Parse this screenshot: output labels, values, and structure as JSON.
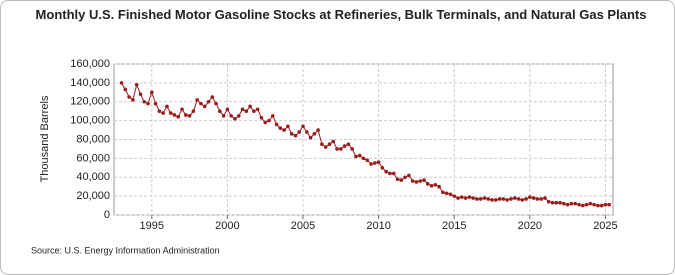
{
  "chart_data": {
    "type": "line",
    "title": "Monthly U.S. Finished Motor Gasoline Stocks at Refineries, Bulk Terminals, and Natural Gas Plants",
    "y_label": "Thousand Barrels",
    "source": "Source: U.S. Energy Information Administration",
    "xlim": [
      1992.5,
      2025.5
    ],
    "xticks": [
      1995,
      2000,
      2005,
      2010,
      2015,
      2020,
      2025
    ],
    "ylim": [
      0,
      160000
    ],
    "yticks": [
      0,
      {
        "value": 20000,
        "label": "20,000"
      },
      {
        "value": 40000,
        "label": "40,000"
      },
      {
        "value": 60000,
        "label": "60,000"
      },
      {
        "value": 80000,
        "label": "80,000"
      },
      {
        "value": 100000,
        "label": "100,000"
      },
      {
        "value": 120000,
        "label": "120,000"
      },
      {
        "value": 140000,
        "label": "140,000"
      },
      {
        "value": 160000,
        "label": "160,000"
      }
    ],
    "grid": true,
    "series": [
      {
        "color": "#9b1b1b",
        "x": [
          1993,
          1993.25,
          1993.5,
          1993.75,
          1994,
          1994.25,
          1994.5,
          1994.75,
          1995,
          1995.25,
          1995.5,
          1995.75,
          1996,
          1996.25,
          1996.5,
          1996.75,
          1997,
          1997.25,
          1997.5,
          1997.75,
          1998,
          1998.25,
          1998.5,
          1998.75,
          1999,
          1999.25,
          1999.5,
          1999.75,
          2000,
          2000.25,
          2000.5,
          2000.75,
          2001,
          2001.25,
          2001.5,
          2001.75,
          2002,
          2002.25,
          2002.5,
          2002.75,
          2003,
          2003.25,
          2003.5,
          2003.75,
          2004,
          2004.25,
          2004.5,
          2004.75,
          2005,
          2005.25,
          2005.5,
          2005.75,
          2006,
          2006.25,
          2006.5,
          2006.75,
          2007,
          2007.25,
          2007.5,
          2007.75,
          2008,
          2008.25,
          2008.5,
          2008.75,
          2009,
          2009.25,
          2009.5,
          2009.75,
          2010,
          2010.25,
          2010.5,
          2010.75,
          2011,
          2011.25,
          2011.5,
          2011.75,
          2012,
          2012.25,
          2012.5,
          2012.75,
          2013,
          2013.25,
          2013.5,
          2013.75,
          2014,
          2014.25,
          2014.5,
          2014.75,
          2015,
          2015.25,
          2015.5,
          2015.75,
          2016,
          2016.25,
          2016.5,
          2016.75,
          2017,
          2017.25,
          2017.5,
          2017.75,
          2018,
          2018.25,
          2018.5,
          2018.75,
          2019,
          2019.25,
          2019.5,
          2019.75,
          2020,
          2020.25,
          2020.5,
          2020.75,
          2021,
          2021.25,
          2021.5,
          2021.75,
          2022,
          2022.25,
          2022.5,
          2022.75,
          2023,
          2023.25,
          2023.5,
          2023.75,
          2024,
          2024.25,
          2024.5,
          2024.75,
          2025,
          2025.25
        ],
        "values": [
          140000,
          133000,
          125000,
          122000,
          138000,
          128000,
          120000,
          118000,
          130000,
          118000,
          110000,
          108000,
          115000,
          108000,
          106000,
          104000,
          112000,
          106000,
          105000,
          110000,
          122000,
          118000,
          115000,
          120000,
          125000,
          118000,
          110000,
          105000,
          112000,
          105000,
          102000,
          105000,
          112000,
          110000,
          115000,
          110000,
          112000,
          103000,
          98000,
          100000,
          105000,
          96000,
          92000,
          90000,
          94000,
          86000,
          84000,
          88000,
          94000,
          88000,
          82000,
          86000,
          90000,
          75000,
          72000,
          75000,
          78000,
          70000,
          70000,
          73000,
          75000,
          70000,
          62000,
          63000,
          60000,
          58000,
          54000,
          55000,
          56000,
          50000,
          46000,
          44000,
          44000,
          38000,
          37000,
          40000,
          42000,
          36000,
          35000,
          36000,
          37000,
          33000,
          31000,
          32000,
          30000,
          24000,
          23000,
          22000,
          20000,
          18000,
          19000,
          18000,
          19000,
          18000,
          17000,
          17000,
          18000,
          17000,
          16000,
          16000,
          17000,
          17000,
          16000,
          17000,
          18000,
          17000,
          16000,
          17000,
          19000,
          18000,
          17000,
          17000,
          18000,
          14000,
          13000,
          13000,
          13000,
          12000,
          11000,
          12000,
          12000,
          11000,
          10000,
          11000,
          12000,
          11000,
          10000,
          10000,
          11000,
          11000
        ]
      }
    ]
  }
}
